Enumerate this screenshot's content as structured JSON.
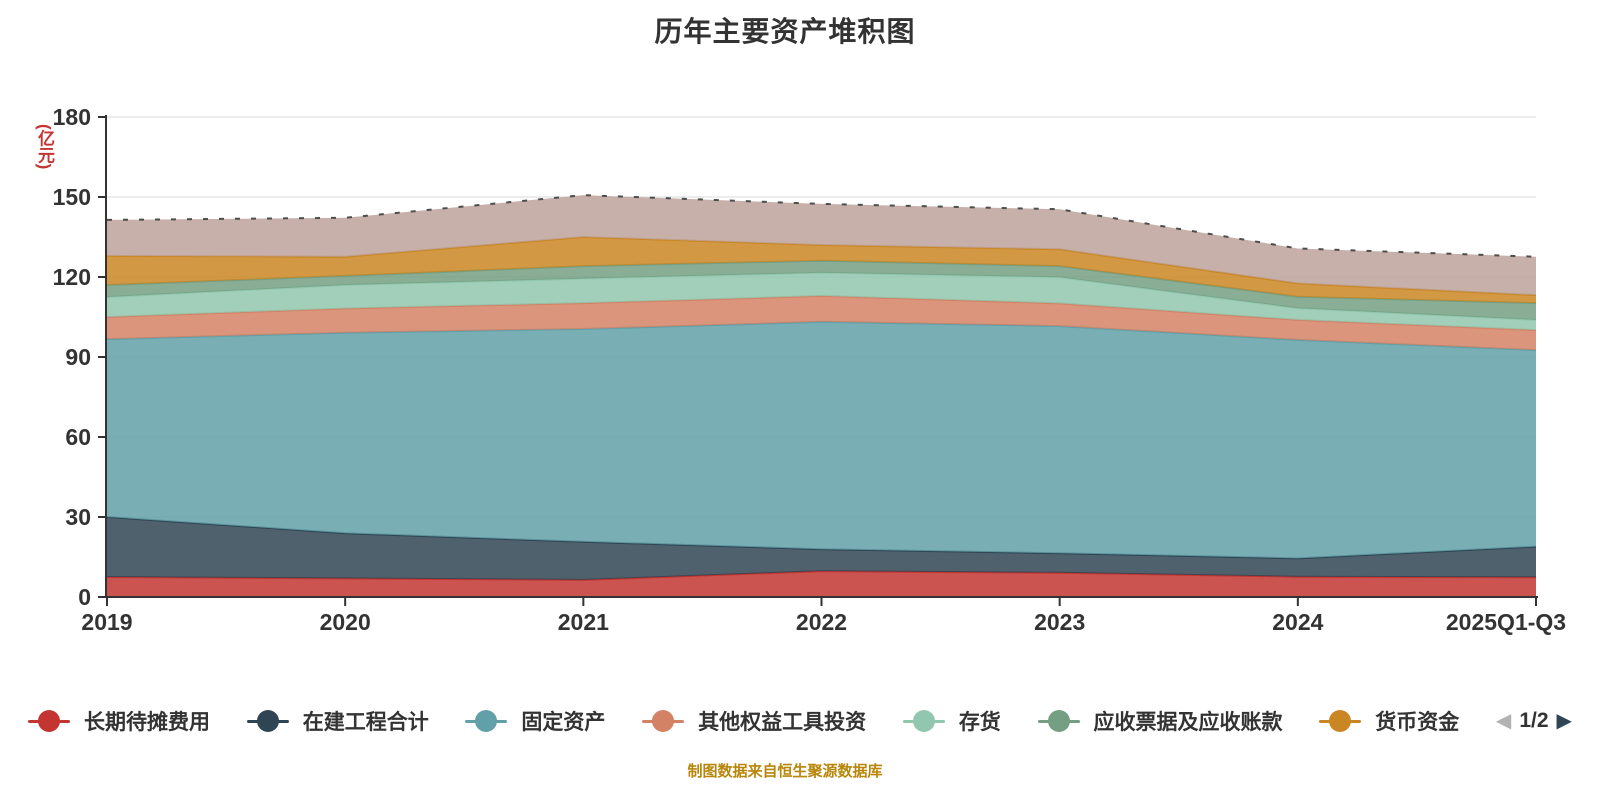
{
  "title": "历年主要资产堆积图",
  "source_note": "制图数据来自恒生聚源数据库",
  "legend": {
    "items": [
      {
        "label": "长期待摊费用",
        "color": "#c23531"
      },
      {
        "label": "在建工程合计",
        "color": "#2f4554"
      },
      {
        "label": "固定资产",
        "color": "#61a0a8"
      },
      {
        "label": "其他权益工具投资",
        "color": "#d48265"
      },
      {
        "label": "存货",
        "color": "#91c7ae"
      },
      {
        "label": "应收票据及应收账款",
        "color": "#749f83"
      },
      {
        "label": "货币资金",
        "color": "#ca8622"
      }
    ],
    "pagination": {
      "label": "1/2",
      "prev_color": "#b2b2b2",
      "next_color": "#2f4554"
    }
  },
  "chart_data": {
    "type": "area",
    "stacked": true,
    "title": "历年主要资产堆积图",
    "ylabel": "(亿元)",
    "ylim": [
      0,
      180
    ],
    "yticks": [
      0,
      30,
      60,
      90,
      120,
      150,
      180
    ],
    "grid": true,
    "legend_position": "bottom",
    "x": [
      "2019",
      "2020",
      "2021",
      "2022",
      "2023",
      "2024",
      "2025Q1-Q3"
    ],
    "series": [
      {
        "name": "长期待摊费用",
        "color": "#c23531",
        "values": [
          7.5,
          7.0,
          6.4,
          9.7,
          9.1,
          7.6,
          7.4
        ]
      },
      {
        "name": "在建工程合计",
        "color": "#2f4554",
        "values": [
          22.5,
          16.9,
          14.3,
          8.2,
          7.3,
          6.9,
          11.5
        ]
      },
      {
        "name": "固定资产",
        "color": "#61a0a8",
        "values": [
          66.7,
          75.2,
          79.8,
          85.3,
          85.2,
          81.9,
          73.7
        ]
      },
      {
        "name": "其他权益工具投资",
        "color": "#d48265",
        "values": [
          8.3,
          9.1,
          9.7,
          9.7,
          8.5,
          7.5,
          7.5
        ]
      },
      {
        "name": "存货",
        "color": "#91c7ae",
        "values": [
          7.5,
          8.8,
          9.2,
          8.7,
          9.8,
          4.4,
          3.8
        ]
      },
      {
        "name": "应收票据及应收账款",
        "color": "#749f83",
        "values": [
          4.5,
          3.4,
          4.7,
          4.5,
          4.2,
          4.3,
          6.3
        ]
      },
      {
        "name": "货币资金",
        "color": "#ca8622",
        "values": [
          10.9,
          7.2,
          10.9,
          5.9,
          6.3,
          5.0,
          3.0
        ]
      },
      {
        "name": "",
        "color": "#bda29a",
        "values": [
          13.5,
          14.6,
          15.7,
          15.4,
          15.0,
          13.1,
          14.4
        ]
      }
    ],
    "stack_totals": [
      141.4,
      142.2,
      150.7,
      147.4,
      145.4,
      130.7,
      127.6
    ]
  }
}
